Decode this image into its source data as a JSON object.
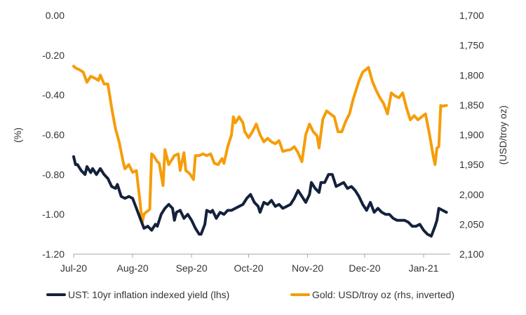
{
  "chart_data": {
    "type": "line",
    "ylabel_left": "(%)",
    "ylabel_right": "(USD/troy oz)",
    "left_axis": {
      "ylim": [
        -1.2,
        0.0
      ],
      "ticks": [
        "0.00",
        "-0.20",
        "-0.40",
        "-0.60",
        "-0.80",
        "-1.00",
        "-1.20"
      ],
      "tick_values": [
        0.0,
        -0.2,
        -0.4,
        -0.6,
        -0.8,
        -1.0,
        -1.2
      ]
    },
    "right_axis": {
      "inverted": true,
      "ylim": [
        1700,
        2100
      ],
      "ticks": [
        "1,700",
        "1,750",
        "1,800",
        "1,850",
        "1,900",
        "1,950",
        "2,000",
        "2,050",
        "2,100"
      ],
      "tick_values": [
        1700,
        1750,
        1800,
        1850,
        1900,
        1950,
        2000,
        2050,
        2100
      ]
    },
    "x_ticks": [
      {
        "label": "Jul-20",
        "date": "2020-07-01"
      },
      {
        "label": "Aug-20",
        "date": "2020-08-01"
      },
      {
        "label": "Sep-20",
        "date": "2020-09-01"
      },
      {
        "label": "Oct-20",
        "date": "2020-10-01"
      },
      {
        "label": "Nov-20",
        "date": "2020-11-01"
      },
      {
        "label": "Dec-20",
        "date": "2020-12-01"
      },
      {
        "label": "Jan-21",
        "date": "2021-01-01"
      }
    ],
    "x_range": [
      "2020-07-01",
      "2021-01-15"
    ],
    "grid": false,
    "legend_position": "bottom",
    "series": [
      {
        "name": "UST: 10yr inflation indexed yield (lhs)",
        "axis": "left",
        "color": "#14213d",
        "points": [
          [
            "2020-07-01",
            -0.71
          ],
          [
            "2020-07-02",
            -0.75
          ],
          [
            "2020-07-03",
            -0.75
          ],
          [
            "2020-07-05",
            -0.78
          ],
          [
            "2020-07-07",
            -0.8
          ],
          [
            "2020-07-08",
            -0.76
          ],
          [
            "2020-07-10",
            -0.79
          ],
          [
            "2020-07-11",
            -0.77
          ],
          [
            "2020-07-13",
            -0.8
          ],
          [
            "2020-07-15",
            -0.77
          ],
          [
            "2020-07-17",
            -0.8
          ],
          [
            "2020-07-19",
            -0.82
          ],
          [
            "2020-07-21",
            -0.86
          ],
          [
            "2020-07-23",
            -0.87
          ],
          [
            "2020-07-24",
            -0.85
          ],
          [
            "2020-07-26",
            -0.91
          ],
          [
            "2020-07-28",
            -0.92
          ],
          [
            "2020-07-30",
            -0.91
          ],
          [
            "2020-08-01",
            -0.92
          ],
          [
            "2020-08-03",
            -0.97
          ],
          [
            "2020-08-05",
            -1.02
          ],
          [
            "2020-08-07",
            -1.07
          ],
          [
            "2020-08-09",
            -1.06
          ],
          [
            "2020-08-11",
            -1.08
          ],
          [
            "2020-08-13",
            -1.05
          ],
          [
            "2020-08-14",
            -1.06
          ],
          [
            "2020-08-16",
            -1.0
          ],
          [
            "2020-08-18",
            -0.97
          ],
          [
            "2020-08-20",
            -0.95
          ],
          [
            "2020-08-22",
            -0.97
          ],
          [
            "2020-08-23",
            -1.03
          ],
          [
            "2020-08-24",
            -0.99
          ],
          [
            "2020-08-26",
            -0.98
          ],
          [
            "2020-08-28",
            -1.02
          ],
          [
            "2020-08-30",
            -1.0
          ],
          [
            "2020-09-01",
            -1.03
          ],
          [
            "2020-09-03",
            -1.07
          ],
          [
            "2020-09-05",
            -1.1
          ],
          [
            "2020-09-06",
            -1.1
          ],
          [
            "2020-09-08",
            -1.05
          ],
          [
            "2020-09-09",
            -0.98
          ],
          [
            "2020-09-11",
            -0.99
          ],
          [
            "2020-09-12",
            -0.98
          ],
          [
            "2020-09-14",
            -1.02
          ],
          [
            "2020-09-16",
            -0.99
          ],
          [
            "2020-09-18",
            -1.0
          ],
          [
            "2020-09-20",
            -0.98
          ],
          [
            "2020-09-22",
            -0.98
          ],
          [
            "2020-09-24",
            -0.97
          ],
          [
            "2020-09-26",
            -0.96
          ],
          [
            "2020-09-28",
            -0.95
          ],
          [
            "2020-09-30",
            -0.92
          ],
          [
            "2020-10-02",
            -0.9
          ],
          [
            "2020-10-04",
            -0.94
          ],
          [
            "2020-10-06",
            -0.96
          ],
          [
            "2020-10-07",
            -0.99
          ],
          [
            "2020-10-09",
            -0.94
          ],
          [
            "2020-10-11",
            -0.95
          ],
          [
            "2020-10-13",
            -0.93
          ],
          [
            "2020-10-15",
            -0.96
          ],
          [
            "2020-10-17",
            -0.95
          ],
          [
            "2020-10-19",
            -0.97
          ],
          [
            "2020-10-21",
            -0.96
          ],
          [
            "2020-10-23",
            -0.95
          ],
          [
            "2020-10-25",
            -0.92
          ],
          [
            "2020-10-27",
            -0.88
          ],
          [
            "2020-10-29",
            -0.91
          ],
          [
            "2020-10-31",
            -0.94
          ],
          [
            "2020-11-02",
            -0.9
          ],
          [
            "2020-11-03",
            -0.84
          ],
          [
            "2020-11-05",
            -0.87
          ],
          [
            "2020-11-07",
            -0.89
          ],
          [
            "2020-11-08",
            -0.84
          ],
          [
            "2020-11-10",
            -0.84
          ],
          [
            "2020-11-12",
            -0.8
          ],
          [
            "2020-11-14",
            -0.8
          ],
          [
            "2020-11-16",
            -0.86
          ],
          [
            "2020-11-18",
            -0.85
          ],
          [
            "2020-11-20",
            -0.84
          ],
          [
            "2020-11-22",
            -0.87
          ],
          [
            "2020-11-24",
            -0.86
          ],
          [
            "2020-11-26",
            -0.88
          ],
          [
            "2020-11-28",
            -0.91
          ],
          [
            "2020-11-30",
            -0.95
          ],
          [
            "2020-12-02",
            -0.98
          ],
          [
            "2020-12-04",
            -0.94
          ],
          [
            "2020-12-06",
            -0.99
          ],
          [
            "2020-12-08",
            -0.97
          ],
          [
            "2020-12-10",
            -0.99
          ],
          [
            "2020-12-12",
            -1.0
          ],
          [
            "2020-12-14",
            -1.0
          ],
          [
            "2020-12-16",
            -1.02
          ],
          [
            "2020-12-18",
            -1.03
          ],
          [
            "2020-12-20",
            -1.03
          ],
          [
            "2020-12-22",
            -1.03
          ],
          [
            "2020-12-24",
            -1.04
          ],
          [
            "2020-12-26",
            -1.06
          ],
          [
            "2020-12-28",
            -1.06
          ],
          [
            "2020-12-30",
            -1.05
          ],
          [
            "2021-01-01",
            -1.08
          ],
          [
            "2021-01-03",
            -1.1
          ],
          [
            "2021-01-05",
            -1.11
          ],
          [
            "2021-01-07",
            -1.06
          ],
          [
            "2021-01-08",
            -1.03
          ],
          [
            "2021-01-09",
            -0.97
          ],
          [
            "2021-01-11",
            -0.98
          ],
          [
            "2021-01-13",
            -0.99
          ]
        ]
      },
      {
        "name": "Gold: USD/troy oz (rhs, inverted)",
        "axis": "right",
        "color": "#f59d0a",
        "points": [
          [
            "2020-07-01",
            1785
          ],
          [
            "2020-07-02",
            1788
          ],
          [
            "2020-07-04",
            1791
          ],
          [
            "2020-07-06",
            1795
          ],
          [
            "2020-07-08",
            1812
          ],
          [
            "2020-07-10",
            1802
          ],
          [
            "2020-07-12",
            1805
          ],
          [
            "2020-07-14",
            1809
          ],
          [
            "2020-07-15",
            1800
          ],
          [
            "2020-07-17",
            1815
          ],
          [
            "2020-07-19",
            1815
          ],
          [
            "2020-07-21",
            1855
          ],
          [
            "2020-07-23",
            1890
          ],
          [
            "2020-07-25",
            1913
          ],
          [
            "2020-07-27",
            1945
          ],
          [
            "2020-07-28",
            1957
          ],
          [
            "2020-07-30",
            1950
          ],
          [
            "2020-08-01",
            1963
          ],
          [
            "2020-08-03",
            1960
          ],
          [
            "2020-08-05",
            2015
          ],
          [
            "2020-08-06",
            2048
          ],
          [
            "2020-08-07",
            2033
          ],
          [
            "2020-08-08",
            2030
          ],
          [
            "2020-08-10",
            2025
          ],
          [
            "2020-08-11",
            1932
          ],
          [
            "2020-08-12",
            1935
          ],
          [
            "2020-08-14",
            1945
          ],
          [
            "2020-08-15",
            1948
          ],
          [
            "2020-08-17",
            1985
          ],
          [
            "2020-08-18",
            1925
          ],
          [
            "2020-08-20",
            1950
          ],
          [
            "2020-08-21",
            1945
          ],
          [
            "2020-08-23",
            1935
          ],
          [
            "2020-08-25",
            1932
          ],
          [
            "2020-08-26",
            1960
          ],
          [
            "2020-08-28",
            1930
          ],
          [
            "2020-08-29",
            1960
          ],
          [
            "2020-08-31",
            1965
          ],
          [
            "2020-09-02",
            1975
          ],
          [
            "2020-09-03",
            1935
          ],
          [
            "2020-09-05",
            1935
          ],
          [
            "2020-09-07",
            1932
          ],
          [
            "2020-09-09",
            1935
          ],
          [
            "2020-09-11",
            1932
          ],
          [
            "2020-09-13",
            1948
          ],
          [
            "2020-09-15",
            1950
          ],
          [
            "2020-09-17",
            1940
          ],
          [
            "2020-09-18",
            1948
          ],
          [
            "2020-09-20",
            1920
          ],
          [
            "2020-09-22",
            1900
          ],
          [
            "2020-09-23",
            1870
          ],
          [
            "2020-09-24",
            1880
          ],
          [
            "2020-09-26",
            1870
          ],
          [
            "2020-09-28",
            1880
          ],
          [
            "2020-09-29",
            1895
          ],
          [
            "2020-10-01",
            1905
          ],
          [
            "2020-10-03",
            1895
          ],
          [
            "2020-10-05",
            1882
          ],
          [
            "2020-10-07",
            1900
          ],
          [
            "2020-10-09",
            1912
          ],
          [
            "2020-10-11",
            1906
          ],
          [
            "2020-10-13",
            1912
          ],
          [
            "2020-10-15",
            1915
          ],
          [
            "2020-10-17",
            1910
          ],
          [
            "2020-10-19",
            1928
          ],
          [
            "2020-10-21",
            1926
          ],
          [
            "2020-10-23",
            1925
          ],
          [
            "2020-10-25",
            1920
          ],
          [
            "2020-10-27",
            1930
          ],
          [
            "2020-10-29",
            1945
          ],
          [
            "2020-10-31",
            1900
          ],
          [
            "2020-11-02",
            1882
          ],
          [
            "2020-11-04",
            1895
          ],
          [
            "2020-11-06",
            1902
          ],
          [
            "2020-11-07",
            1922
          ],
          [
            "2020-11-09",
            1874
          ],
          [
            "2020-11-11",
            1860
          ],
          [
            "2020-11-13",
            1865
          ],
          [
            "2020-11-15",
            1870
          ],
          [
            "2020-11-17",
            1895
          ],
          [
            "2020-11-19",
            1895
          ],
          [
            "2020-11-21",
            1878
          ],
          [
            "2020-11-23",
            1865
          ],
          [
            "2020-11-25",
            1840
          ],
          [
            "2020-11-27",
            1820
          ],
          [
            "2020-11-28",
            1810
          ],
          [
            "2020-11-30",
            1795
          ],
          [
            "2020-12-02",
            1790
          ],
          [
            "2020-12-03",
            1787
          ],
          [
            "2020-12-05",
            1810
          ],
          [
            "2020-12-07",
            1825
          ],
          [
            "2020-12-09",
            1838
          ],
          [
            "2020-12-11",
            1848
          ],
          [
            "2020-12-13",
            1865
          ],
          [
            "2020-12-15",
            1830
          ],
          [
            "2020-12-17",
            1835
          ],
          [
            "2020-12-19",
            1838
          ],
          [
            "2020-12-21",
            1830
          ],
          [
            "2020-12-23",
            1855
          ],
          [
            "2020-12-25",
            1875
          ],
          [
            "2020-12-27",
            1868
          ],
          [
            "2020-12-29",
            1875
          ],
          [
            "2020-12-31",
            1870
          ],
          [
            "2021-01-02",
            1865
          ],
          [
            "2021-01-04",
            1898
          ],
          [
            "2021-01-06",
            1935
          ],
          [
            "2021-01-07",
            1950
          ],
          [
            "2021-01-08",
            1922
          ],
          [
            "2021-01-09",
            1920
          ],
          [
            "2021-01-10",
            1851
          ],
          [
            "2021-01-11",
            1852
          ],
          [
            "2021-01-13",
            1851
          ]
        ]
      }
    ]
  }
}
